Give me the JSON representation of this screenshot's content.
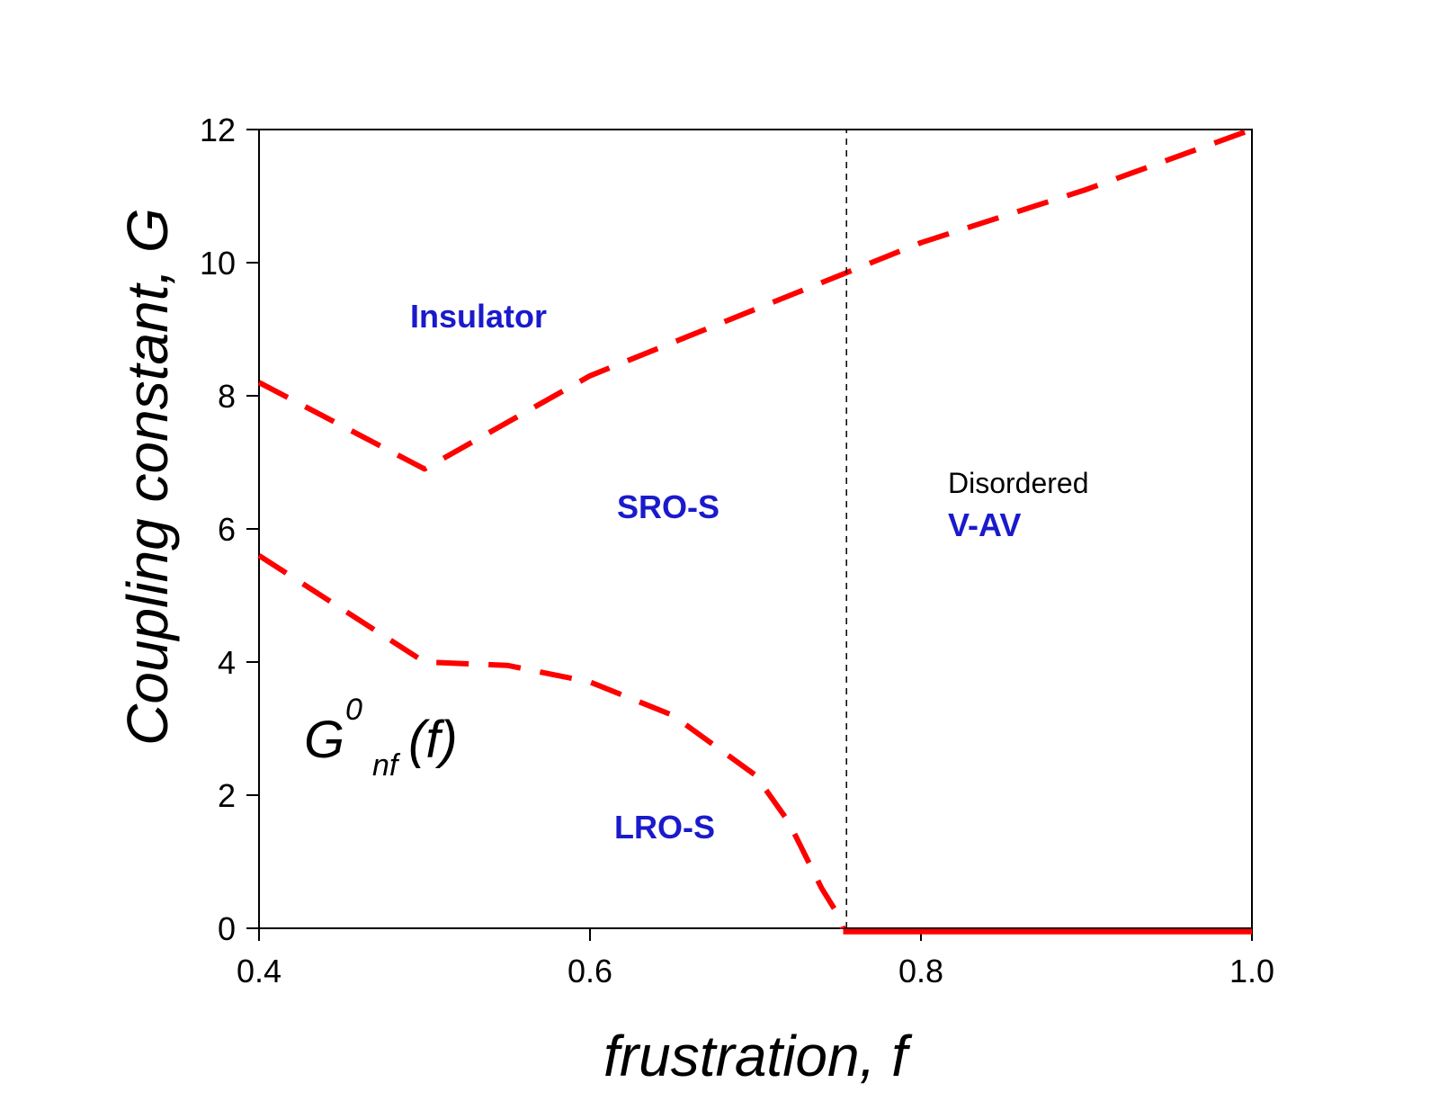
{
  "chart_data": {
    "type": "line",
    "title": "",
    "xlabel": "frustration, f",
    "ylabel": "Coupling constant, G",
    "xlim": [
      0.4,
      1.0
    ],
    "ylim": [
      0,
      12
    ],
    "xticks": [
      0.4,
      0.6,
      0.8,
      1.0
    ],
    "xtick_labels": [
      "0.4",
      "0.6",
      "0.8",
      "1.0"
    ],
    "yticks": [
      0,
      2,
      4,
      6,
      8,
      10,
      12
    ],
    "ytick_labels": [
      "0",
      "2",
      "4",
      "6",
      "8",
      "10",
      "12"
    ],
    "grid": false,
    "series": [
      {
        "name": "upper boundary",
        "style": "dashed",
        "color": "#ff0000",
        "x": [
          0.4,
          0.5,
          0.6,
          0.7,
          0.755,
          0.8,
          0.9,
          1.0
        ],
        "y": [
          8.2,
          6.9,
          8.3,
          9.3,
          9.85,
          10.3,
          11.1,
          12.0
        ]
      },
      {
        "name": "lower boundary",
        "style": "dashed",
        "color": "#ff0000",
        "x": [
          0.4,
          0.45,
          0.5,
          0.55,
          0.6,
          0.65,
          0.7,
          0.72,
          0.74,
          0.75,
          0.753
        ],
        "y": [
          5.6,
          4.8,
          4.0,
          3.95,
          3.7,
          3.2,
          2.3,
          1.6,
          0.6,
          0.2,
          0.0
        ]
      },
      {
        "name": "zero line",
        "style": "solid",
        "color": "#ff0000",
        "x": [
          0.753,
          1.0
        ],
        "y": [
          -0.05,
          -0.05
        ]
      },
      {
        "name": "critical frustration",
        "style": "dashed-thin",
        "color": "#000000",
        "x": [
          0.755,
          0.755
        ],
        "y": [
          0,
          12
        ]
      }
    ],
    "annotations": {
      "insulator": "Insulator",
      "sro": "SRO-S",
      "lro": "LRO-S",
      "disordered": "Disordered",
      "vav": "V-AV",
      "formula_main": "G",
      "formula_sup": "0",
      "formula_sub": "nf",
      "formula_arg": "(f)"
    },
    "colors": {
      "boundary": "#ff0000",
      "label": "#1a1acc",
      "axis": "#000000"
    }
  }
}
